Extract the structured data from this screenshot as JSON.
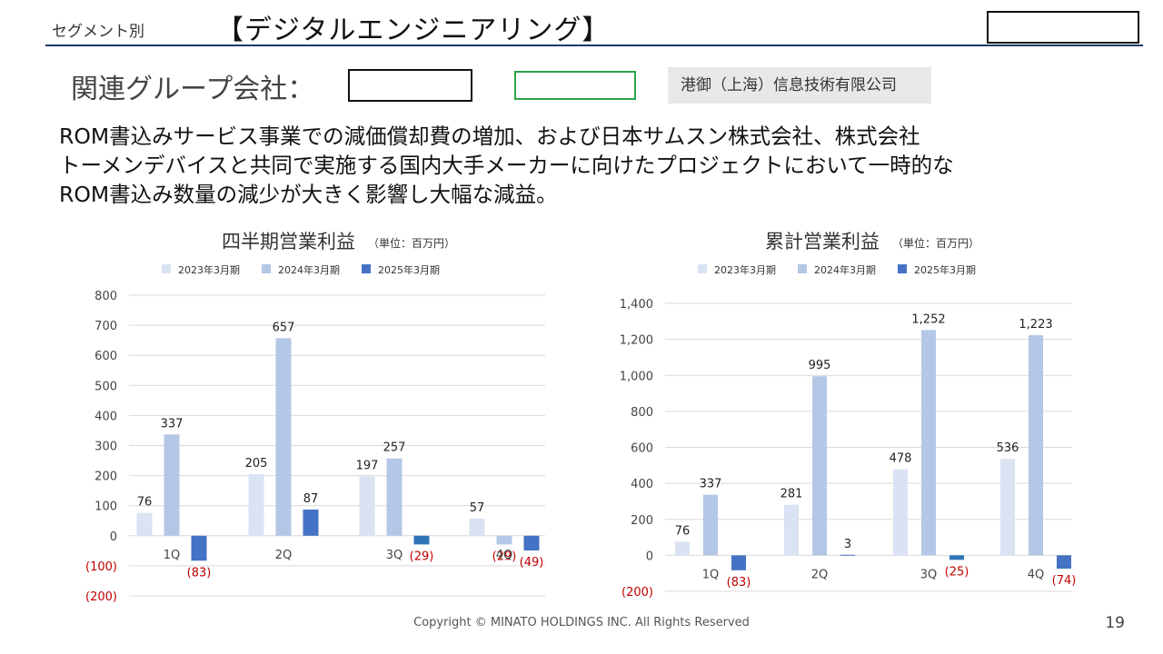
{
  "header": {
    "segment_label": "セグメント別",
    "title": "【デジタルエンジニアリング】"
  },
  "group": {
    "label": "関連グループ会社：",
    "subsidiary_cn": "港御（上海）信息技術有限公司"
  },
  "body": {
    "lines": [
      "ROM書込みサービス事業での減価償却費の増加、および日本サムスン株式会社、株式会社",
      "トーメンデバイスと共同で実施する国内大手メーカーに向けたプロジェクトにおいて一時的な",
      "ROM書込み数量の減少が大きく影響し大幅な減益。"
    ]
  },
  "colors": {
    "series_2023": "#dae3f3",
    "series_2024": "#b4c7e7",
    "series_2025": "#4472c4",
    "series_2025_q3": "#2e75b6",
    "negative_label": "#c00000",
    "rule": "#1f3864"
  },
  "chart_data": [
    {
      "type": "bar",
      "title": "四半期営業利益",
      "unit": "（単位：百万円）",
      "categories": [
        "1Q",
        "2Q",
        "3Q",
        "4Q"
      ],
      "series": [
        {
          "name": "2023年3月期",
          "values": [
            76,
            205,
            197,
            57
          ]
        },
        {
          "name": "2024年3月期",
          "values": [
            337,
            657,
            257,
            -29
          ]
        },
        {
          "name": "2025年3月期",
          "values": [
            -83,
            87,
            -29,
            -49
          ]
        }
      ],
      "data_labels": [
        [
          "76",
          "205",
          "197",
          "57"
        ],
        [
          "337",
          "657",
          "257",
          "(29)"
        ],
        [
          "(83)",
          "87",
          "(29)",
          "(49)"
        ]
      ],
      "ylim": [
        -200,
        800
      ],
      "yticks": [
        -200,
        -100,
        0,
        100,
        200,
        300,
        400,
        500,
        600,
        700,
        800
      ],
      "ytick_labels": [
        "(200)",
        "(100)",
        "0",
        "100",
        "200",
        "300",
        "400",
        "500",
        "600",
        "700",
        "800"
      ],
      "grid": true,
      "legend": "top"
    },
    {
      "type": "bar",
      "title": "累計営業利益",
      "unit": "（単位：百万円）",
      "categories": [
        "1Q",
        "2Q",
        "3Q",
        "4Q"
      ],
      "series": [
        {
          "name": "2023年3月期",
          "values": [
            76,
            281,
            478,
            536
          ]
        },
        {
          "name": "2024年3月期",
          "values": [
            337,
            995,
            1252,
            1223
          ]
        },
        {
          "name": "2025年3月期",
          "values": [
            -83,
            3,
            -25,
            -74
          ]
        }
      ],
      "data_labels": [
        [
          "76",
          "281",
          "478",
          "536"
        ],
        [
          "337",
          "995",
          "1,252",
          "1,223"
        ],
        [
          "(83)",
          "3",
          "(25)",
          "(74)"
        ]
      ],
      "ylim": [
        -200,
        1400
      ],
      "yticks": [
        -200,
        0,
        200,
        400,
        600,
        800,
        1000,
        1200,
        1400
      ],
      "ytick_labels": [
        "(200)",
        "0",
        "200",
        "400",
        "600",
        "800",
        "1,000",
        "1,200",
        "1,400"
      ],
      "grid": true,
      "legend": "top"
    }
  ],
  "footer": {
    "copyright": "Copyright © MINATO HOLDINGS INC. All Rights Reserved",
    "page_number": "19"
  }
}
